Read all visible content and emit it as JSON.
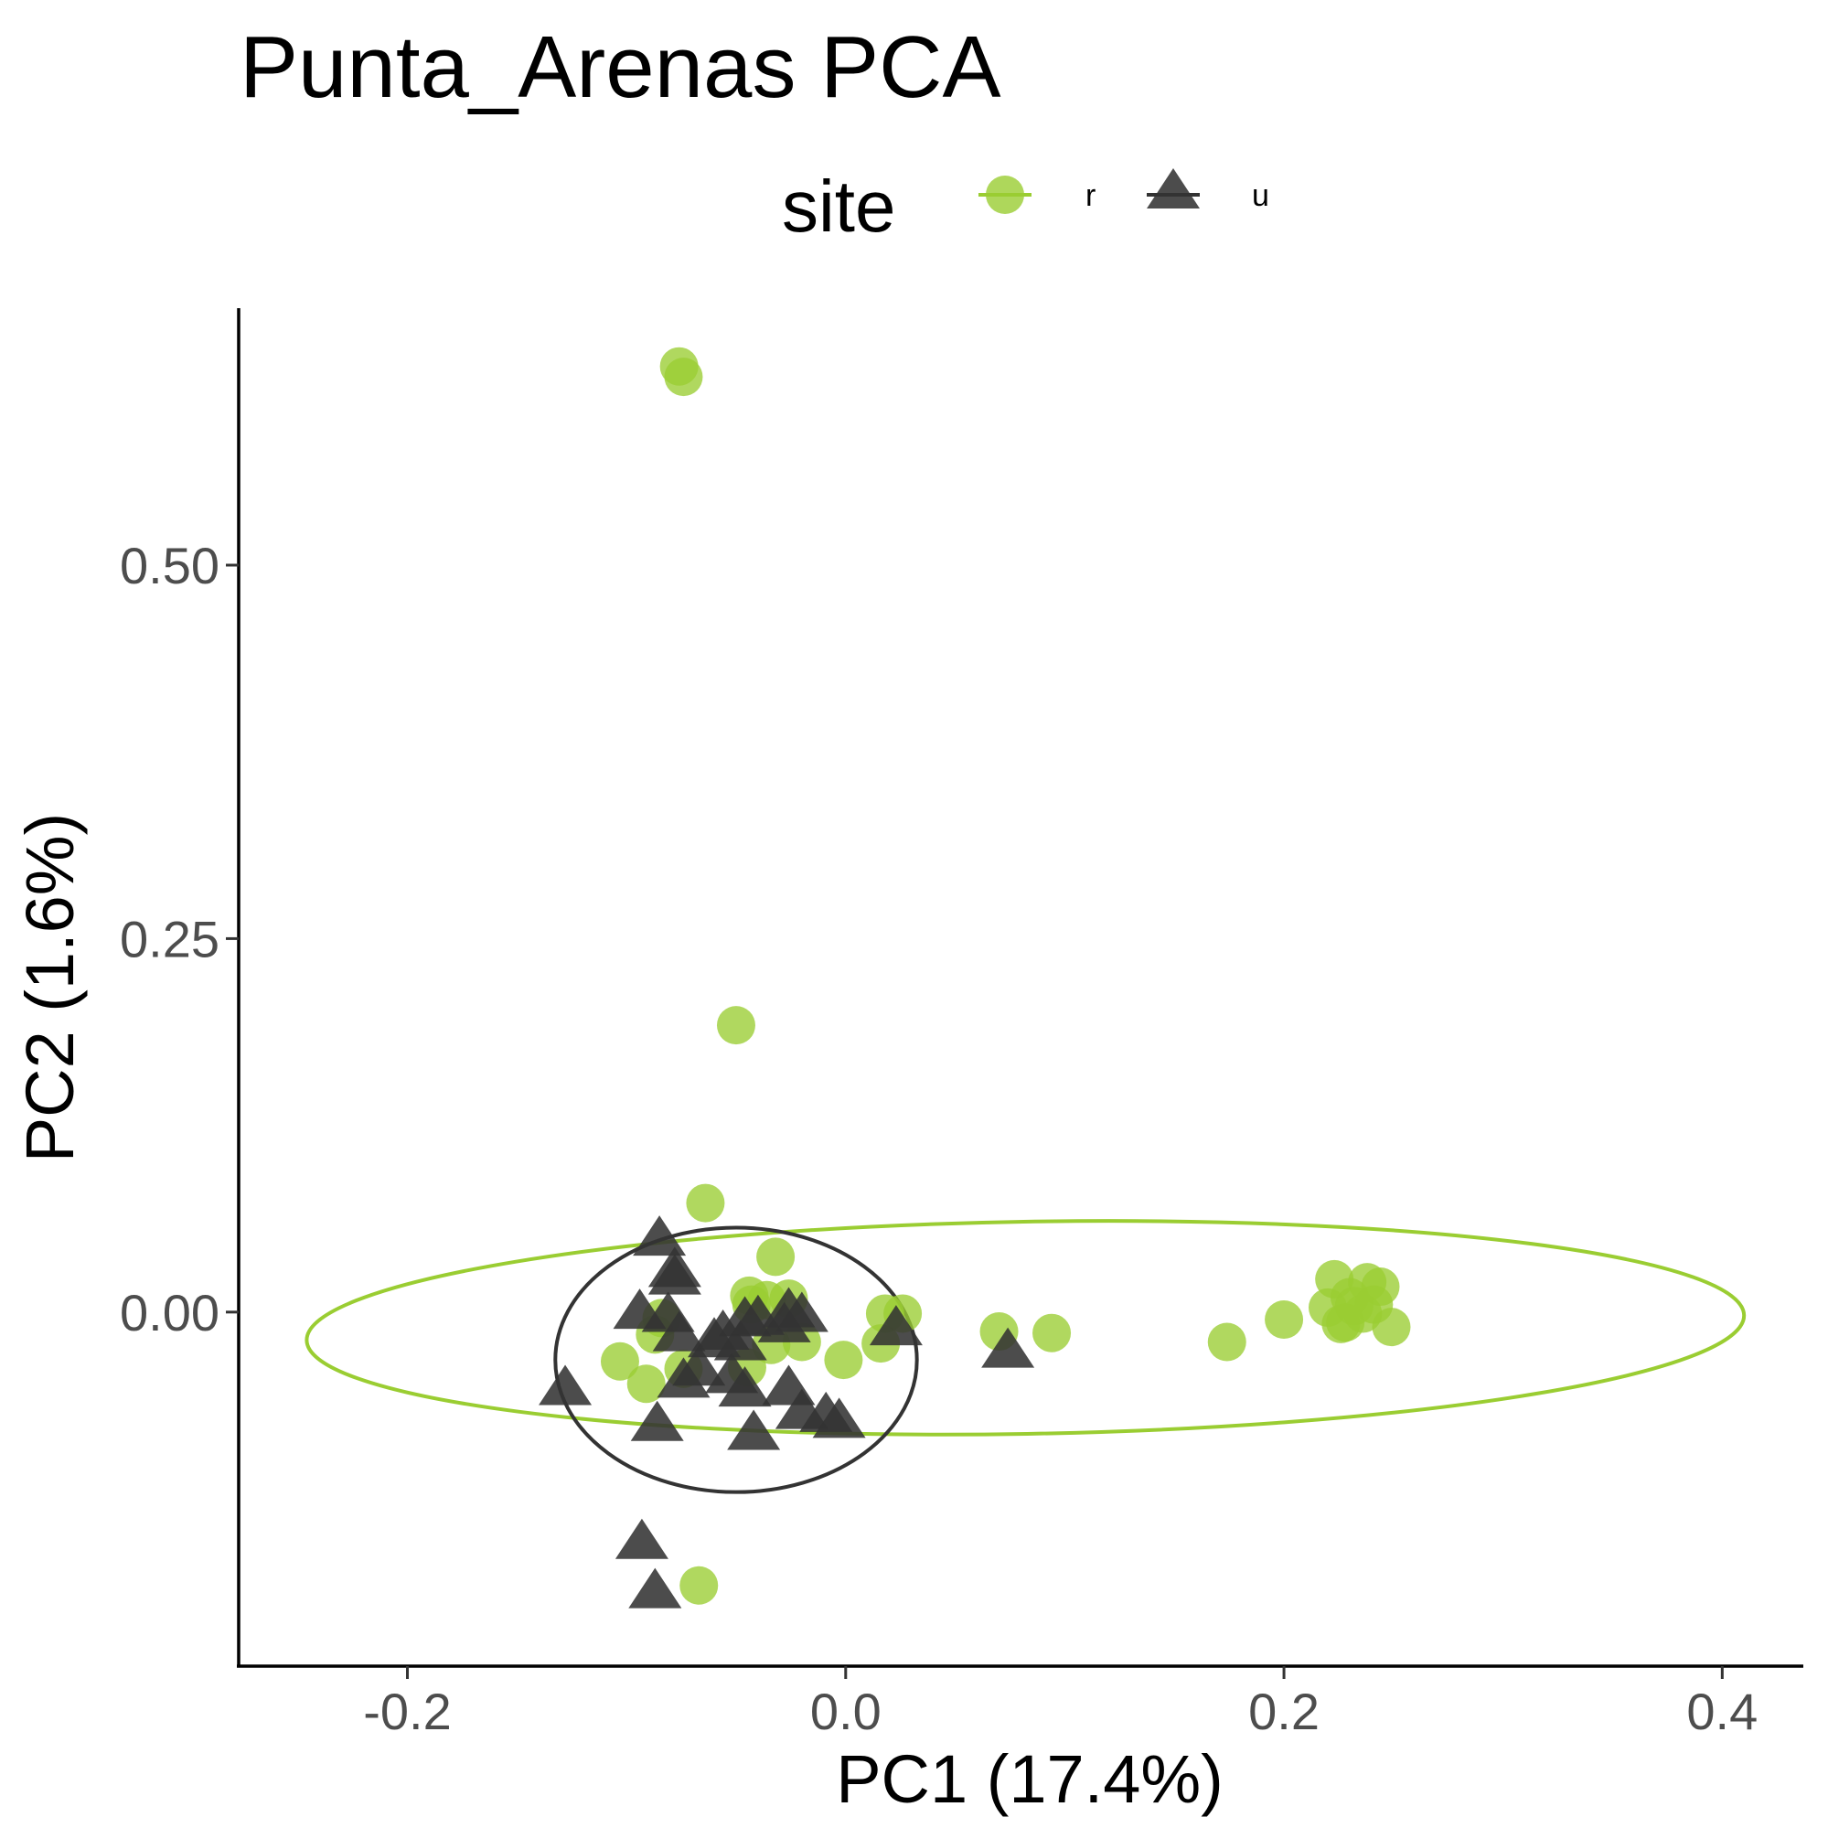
{
  "chart_data": {
    "type": "scatter",
    "title": "Punta_Arenas PCA",
    "xlabel": "PC1 (17.4%)",
    "ylabel": "PC2 (1.6%)",
    "xlim": [
      -0.277,
      0.437
    ],
    "ylim": [
      -0.237,
      0.672
    ],
    "x_ticks": [
      -0.2,
      0.0,
      0.2,
      0.4
    ],
    "x_tick_labels": [
      "-0.2",
      "0.0",
      "0.2",
      "0.4"
    ],
    "y_ticks": [
      0.0,
      0.25,
      0.5
    ],
    "y_tick_labels": [
      "0.00",
      "0.25",
      "0.50"
    ],
    "grid": false,
    "legend": {
      "title": "site",
      "position": "top",
      "entries": [
        {
          "label": "r",
          "shape": "circle",
          "color": "#9acd32"
        },
        {
          "label": "u",
          "shape": "triangle",
          "color": "#333333"
        }
      ]
    },
    "series": [
      {
        "name": "r",
        "shape": "circle",
        "color": "#9acd32",
        "points": [
          [
            -0.076,
            0.633
          ],
          [
            -0.074,
            0.626
          ],
          [
            -0.05,
            0.192
          ],
          [
            -0.064,
            0.073
          ],
          [
            -0.032,
            0.037
          ],
          [
            -0.026,
            0.009
          ],
          [
            -0.036,
            0.008
          ],
          [
            -0.043,
            0.005
          ],
          [
            -0.044,
            0.011
          ],
          [
            -0.02,
            -0.02
          ],
          [
            -0.034,
            -0.022
          ],
          [
            -0.084,
            -0.004
          ],
          [
            -0.087,
            -0.015
          ],
          [
            -0.103,
            -0.033
          ],
          [
            -0.074,
            -0.038
          ],
          [
            -0.091,
            -0.048
          ],
          [
            -0.045,
            -0.037
          ],
          [
            -0.001,
            -0.032
          ],
          [
            0.016,
            -0.021
          ],
          [
            0.026,
            -0.001
          ],
          [
            0.018,
            -0.001
          ],
          [
            0.07,
            -0.013
          ],
          [
            0.094,
            -0.014
          ],
          [
            -0.067,
            -0.183
          ],
          [
            0.174,
            -0.02
          ],
          [
            0.2,
            -0.005
          ],
          [
            0.22,
            0.003
          ],
          [
            0.223,
            0.022
          ],
          [
            0.23,
            0.01
          ],
          [
            0.228,
            -0.007
          ],
          [
            0.236,
            -0.001
          ],
          [
            0.241,
            0.005
          ],
          [
            0.244,
            0.017
          ],
          [
            0.238,
            0.02
          ],
          [
            0.232,
            0.004
          ],
          [
            0.249,
            -0.01
          ],
          [
            0.226,
            -0.008
          ]
        ],
        "ellipse": {
          "center": [
            0.082,
            -0.0105
          ],
          "semi_axes": [
            0.328,
            0.071
          ],
          "rotation_deg": 1.0
        }
      },
      {
        "name": "u",
        "shape": "triangle",
        "color": "#333333",
        "points": [
          [
            -0.085,
            0.048
          ],
          [
            -0.078,
            0.027
          ],
          [
            -0.078,
            0.022
          ],
          [
            -0.094,
            -0.001
          ],
          [
            -0.081,
            -0.003
          ],
          [
            -0.076,
            -0.016
          ],
          [
            -0.046,
            -0.006
          ],
          [
            -0.056,
            -0.015
          ],
          [
            -0.06,
            -0.02
          ],
          [
            -0.048,
            -0.022
          ],
          [
            -0.04,
            -0.005
          ],
          [
            -0.026,
            0.0
          ],
          [
            -0.028,
            -0.01
          ],
          [
            -0.02,
            -0.003
          ],
          [
            -0.067,
            -0.039
          ],
          [
            -0.074,
            -0.047
          ],
          [
            -0.052,
            -0.044
          ],
          [
            -0.046,
            -0.053
          ],
          [
            -0.026,
            -0.052
          ],
          [
            -0.02,
            -0.068
          ],
          [
            -0.009,
            -0.07
          ],
          [
            -0.003,
            -0.074
          ],
          [
            -0.042,
            -0.082
          ],
          [
            -0.086,
            -0.076
          ],
          [
            -0.128,
            -0.052
          ],
          [
            -0.093,
            -0.155
          ],
          [
            -0.087,
            -0.188
          ],
          [
            0.023,
            -0.012
          ],
          [
            0.074,
            -0.027
          ]
        ],
        "ellipse": {
          "center": [
            -0.05,
            -0.032
          ],
          "semi_axes": [
            0.0825,
            0.0885
          ],
          "rotation_deg": 0
        }
      }
    ]
  }
}
